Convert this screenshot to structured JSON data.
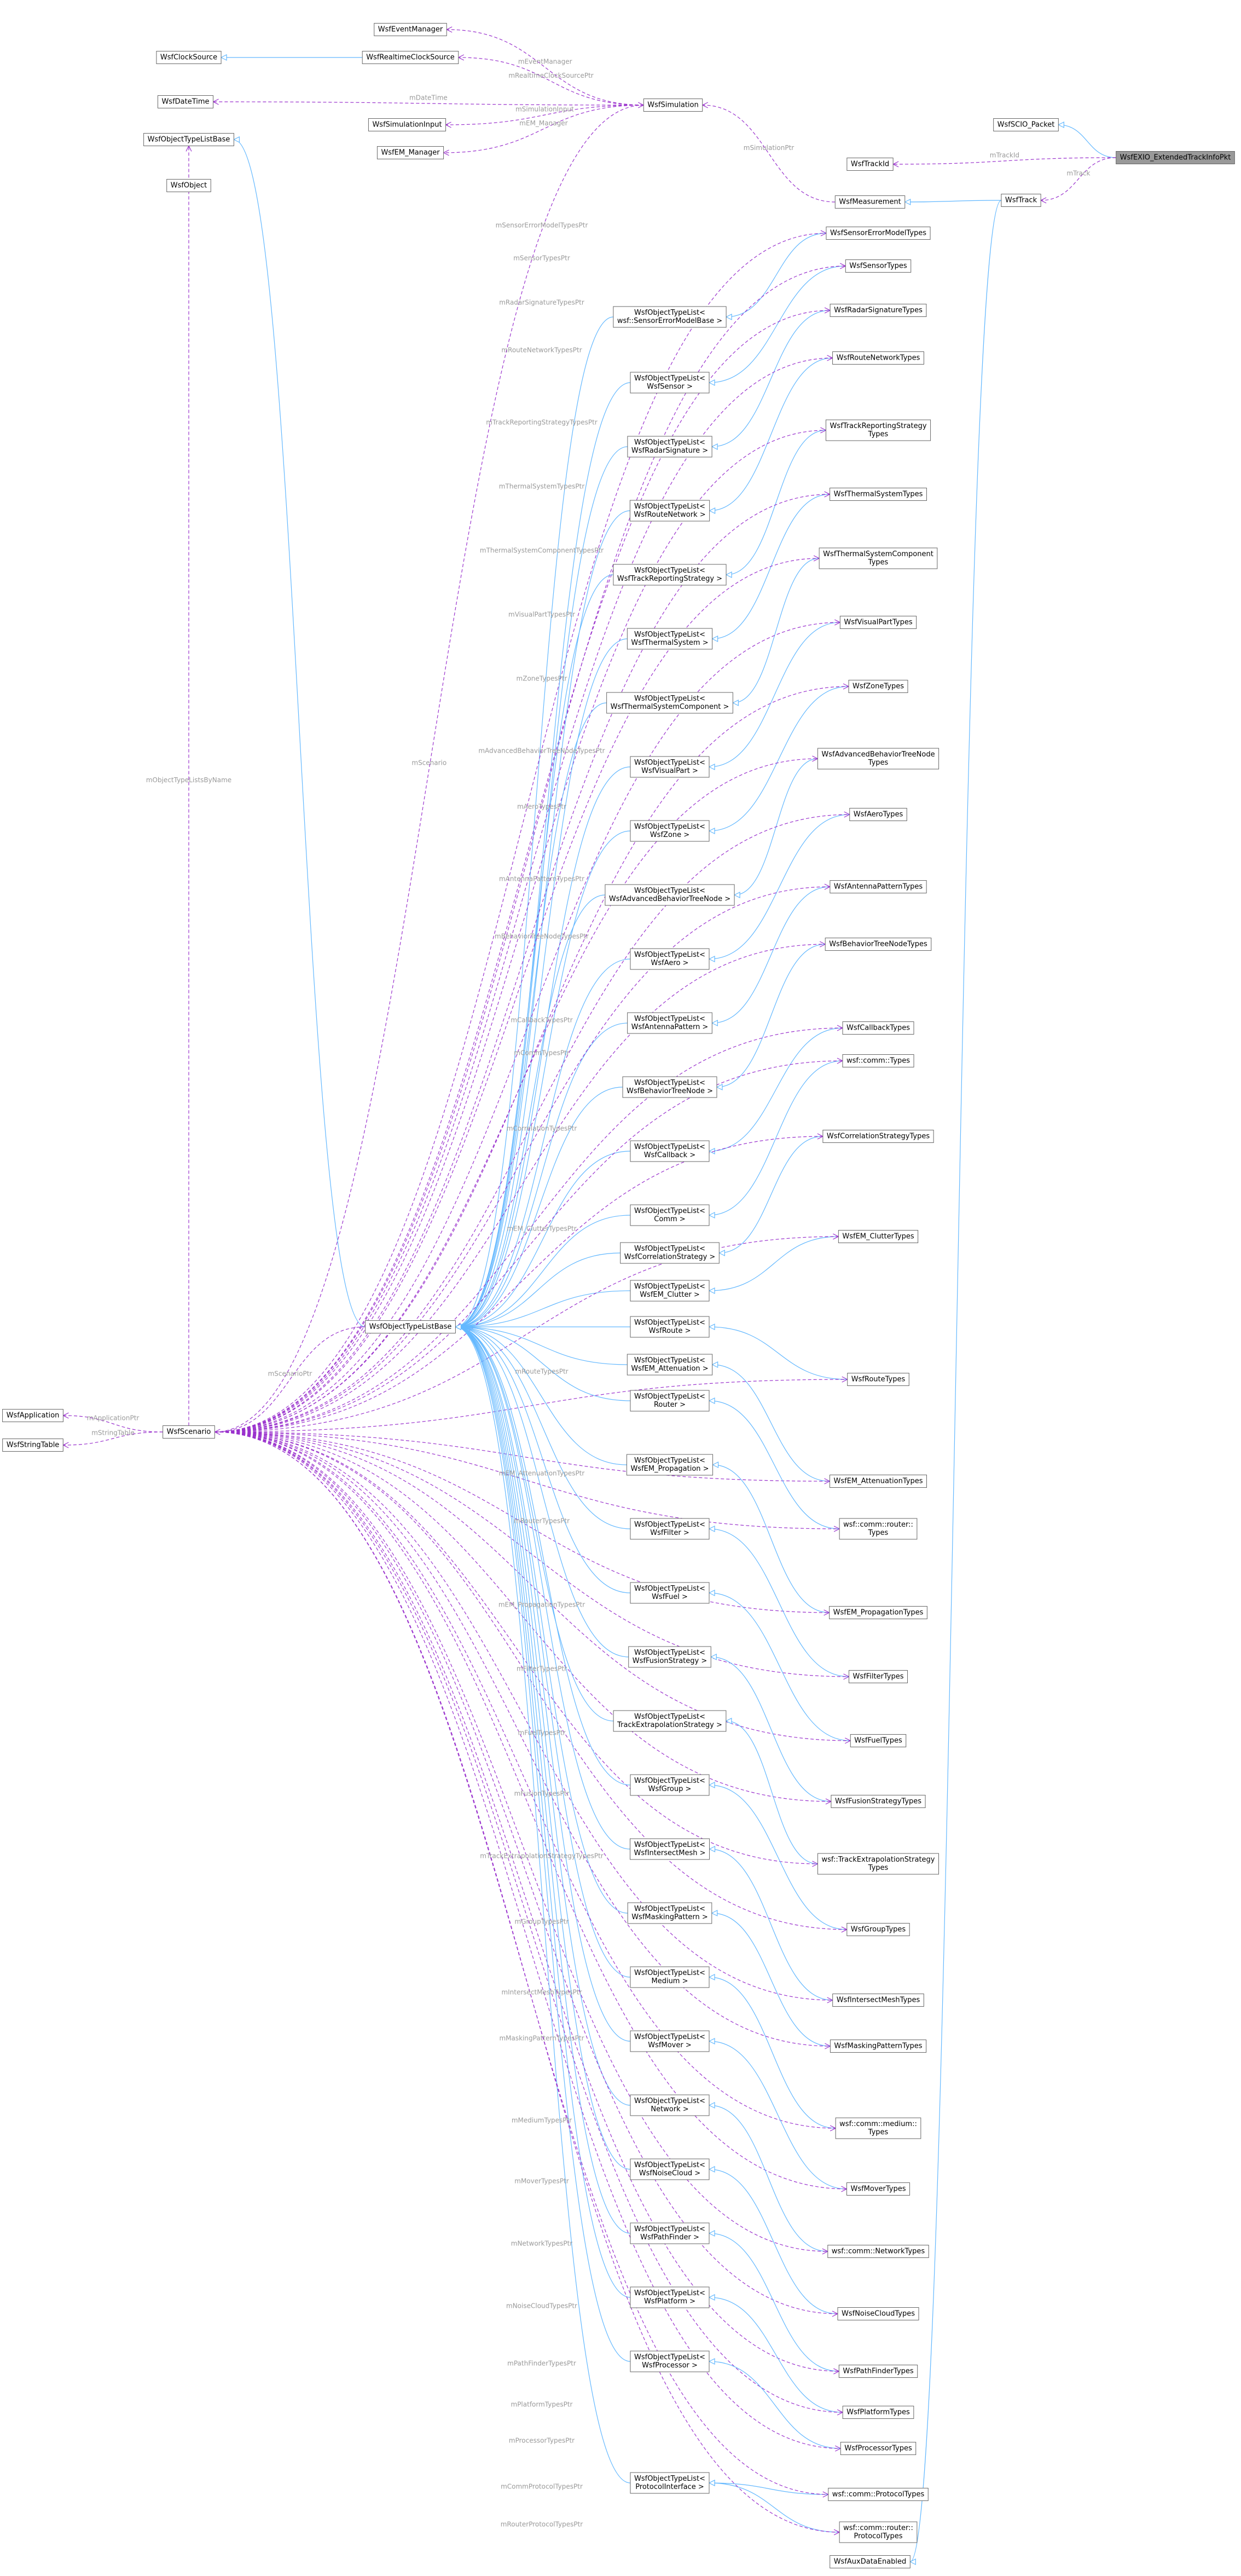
{
  "nodes": [
    {
      "lines": [
        "WsfEventManager"
      ]
    },
    {
      "lines": [
        "WsfRealtimeClockSource"
      ]
    },
    {
      "lines": [
        "WsfClockSource"
      ]
    },
    {
      "lines": [
        "WsfDateTime"
      ]
    },
    {
      "lines": [
        "WsfSimulationInput"
      ]
    },
    {
      "lines": [
        "WsfSimulation"
      ]
    },
    {
      "lines": [
        "WsfEM_Manager"
      ]
    },
    {
      "lines": [
        "WsfObjectTypeListBase"
      ]
    },
    {
      "lines": [
        "WsfObject"
      ]
    },
    {
      "lines": [
        "WsfSCIO_Packet"
      ]
    },
    {
      "lines": [
        "WsfEXIO_ExtendedTrackInfoPkt"
      ]
    },
    {
      "lines": [
        "WsfTrackId"
      ]
    },
    {
      "lines": [
        "WsfMeasurement"
      ]
    },
    {
      "lines": [
        "WsfTrack"
      ]
    },
    {
      "lines": [
        "WsfApplication"
      ]
    },
    {
      "lines": [
        "WsfStringTable"
      ]
    },
    {
      "lines": [
        "WsfScenario"
      ]
    },
    {
      "lines": [
        "WsfObjectTypeListBase"
      ]
    },
    {
      "lines": [
        "WsfAuxDataEnabled"
      ]
    }
  ],
  "edges": [
    {
      "from": 5,
      "to": 0,
      "kind": "usage",
      "label": "mEventManager"
    },
    {
      "from": 5,
      "to": 1,
      "kind": "usage",
      "label": "mRealtimeClockSourcePtr"
    },
    {
      "from": 1,
      "to": 2,
      "kind": "inherit"
    },
    {
      "from": 5,
      "to": 3,
      "kind": "usage",
      "label": "mDateTime"
    },
    {
      "from": 5,
      "to": 4,
      "kind": "usage",
      "label": "mSimulationInput"
    },
    {
      "from": 5,
      "to": 6,
      "kind": "usage",
      "label": "mEM_Manager"
    },
    {
      "from": 16,
      "to": 5,
      "kind": "usage",
      "label": "mScenario"
    },
    {
      "from": 16,
      "to": 7,
      "kind": "usage",
      "label": "mObjectTypeListsByName"
    },
    {
      "from": 16,
      "to": 14,
      "kind": "usage",
      "label": "mApplicationPtr"
    },
    {
      "from": 16,
      "to": 15,
      "kind": "usage",
      "label": "mStringTable"
    },
    {
      "from": 17,
      "to": 7,
      "kind": "inherit"
    },
    {
      "from": 17,
      "to": 16,
      "kind": "usage",
      "label": "mScenarioPtr"
    },
    {
      "from": 10,
      "to": 9,
      "kind": "inherit"
    },
    {
      "from": 10,
      "to": 11,
      "kind": "usage",
      "label": "mTrackId"
    },
    {
      "from": 10,
      "to": 13,
      "kind": "usage",
      "label": "mTrack"
    },
    {
      "from": 13,
      "to": 12,
      "kind": "inherit"
    },
    {
      "from": 12,
      "to": 5,
      "kind": "usage",
      "label": "mSimulationPtr"
    },
    {
      "from": 13,
      "to": 18,
      "kind": "inherit"
    }
  ],
  "type_lists": [
    {
      "list": [
        "WsfObjectTypeList<",
        "wsf::SensorErrorModelBase >"
      ],
      "types": [
        {
          "lines": [
            "WsfSensorErrorModelTypes"
          ],
          "member": "mSensorErrorModelTypesPtr"
        }
      ]
    },
    {
      "list": [
        "WsfObjectTypeList<",
        "WsfSensor >"
      ],
      "types": [
        {
          "lines": [
            "WsfSensorTypes"
          ],
          "member": "mSensorTypesPtr"
        }
      ]
    },
    {
      "list": [
        "WsfObjectTypeList<",
        "WsfRadarSignature >"
      ],
      "types": [
        {
          "lines": [
            "WsfRadarSignatureTypes"
          ],
          "member": "mRadarSignatureTypesPtr"
        }
      ]
    },
    {
      "list": [
        "WsfObjectTypeList<",
        "WsfRouteNetwork >"
      ],
      "types": [
        {
          "lines": [
            "WsfRouteNetworkTypes"
          ],
          "member": "mRouteNetworkTypesPtr"
        }
      ]
    },
    {
      "list": [
        "WsfObjectTypeList<",
        "WsfTrackReportingStrategy >"
      ],
      "types": [
        {
          "lines": [
            "WsfTrackReportingStrategy",
            "Types"
          ],
          "member": "mTrackReportingStrategyTypesPtr"
        }
      ]
    },
    {
      "list": [
        "WsfObjectTypeList<",
        "WsfThermalSystem >"
      ],
      "types": [
        {
          "lines": [
            "WsfThermalSystemTypes"
          ],
          "member": "mThermalSystemTypesPtr"
        }
      ]
    },
    {
      "list": [
        "WsfObjectTypeList<",
        "WsfThermalSystemComponent >"
      ],
      "types": [
        {
          "lines": [
            "WsfThermalSystemComponent",
            "Types"
          ],
          "member": "mThermalSystemComponentTypesPtr"
        }
      ]
    },
    {
      "list": [
        "WsfObjectTypeList<",
        "WsfVisualPart >"
      ],
      "types": [
        {
          "lines": [
            "WsfVisualPartTypes"
          ],
          "member": "mVisualPartTypesPtr"
        }
      ]
    },
    {
      "list": [
        "WsfObjectTypeList<",
        "WsfZone >"
      ],
      "types": [
        {
          "lines": [
            "WsfZoneTypes"
          ],
          "member": "mZoneTypesPtr"
        }
      ]
    },
    {
      "list": [
        "WsfObjectTypeList<",
        "WsfAdvancedBehaviorTreeNode >"
      ],
      "types": [
        {
          "lines": [
            "WsfAdvancedBehaviorTreeNode",
            "Types"
          ],
          "member": "mAdvancedBehaviorTreeNodeTypesPtr"
        }
      ]
    },
    {
      "list": [
        "WsfObjectTypeList<",
        "WsfAero >"
      ],
      "types": [
        {
          "lines": [
            "WsfAeroTypes"
          ],
          "member": "mAeroTypesPtr"
        }
      ]
    },
    {
      "list": [
        "WsfObjectTypeList<",
        "WsfAntennaPattern >"
      ],
      "types": [
        {
          "lines": [
            "WsfAntennaPatternTypes"
          ],
          "member": "mAntennaPatternTypesPtr"
        }
      ]
    },
    {
      "list": [
        "WsfObjectTypeList<",
        "WsfBehaviorTreeNode >"
      ],
      "types": [
        {
          "lines": [
            "WsfBehaviorTreeNodeTypes"
          ],
          "member": "mBehaviorTreeNodeTypesPtr"
        }
      ]
    },
    {
      "list": [
        "WsfObjectTypeList<",
        "WsfCallback >"
      ],
      "types": [
        {
          "lines": [
            "WsfCallbackTypes"
          ],
          "member": "mCallbackTypesPtr"
        }
      ]
    },
    {
      "list": [
        "WsfObjectTypeList<",
        "Comm >"
      ],
      "types": [
        {
          "lines": [
            "wsf::comm::Types"
          ],
          "member": "mCommTypesPtr"
        }
      ]
    },
    {
      "list": [
        "WsfObjectTypeList<",
        "WsfCorrelationStrategy >"
      ],
      "types": [
        {
          "lines": [
            "WsfCorrelationStrategyTypes"
          ],
          "member": "mCorrelationTypesPtr"
        }
      ]
    },
    {
      "list": [
        "WsfObjectTypeList<",
        "WsfEM_Clutter >"
      ],
      "types": [
        {
          "lines": [
            "WsfEM_ClutterTypes"
          ],
          "member": "mEM_ClutterTypesPtr"
        }
      ]
    },
    {
      "list": [
        "WsfObjectTypeList<",
        "WsfRoute >"
      ],
      "types": [
        {
          "lines": [
            "WsfRouteTypes"
          ],
          "member": "mRouteTypesPtr"
        }
      ]
    },
    {
      "list": [
        "WsfObjectTypeList<",
        "WsfEM_Attenuation >"
      ],
      "types": [
        {
          "lines": [
            "WsfEM_AttenuationTypes"
          ],
          "member": "mEM_AttenuationTypesPtr"
        }
      ]
    },
    {
      "list": [
        "WsfObjectTypeList<",
        "Router >"
      ],
      "types": [
        {
          "lines": [
            "wsf::comm::router::",
            "Types"
          ],
          "member": "mRouterTypesPtr"
        }
      ]
    },
    {
      "list": [
        "WsfObjectTypeList<",
        "WsfEM_Propagation >"
      ],
      "types": [
        {
          "lines": [
            "WsfEM_PropagationTypes"
          ],
          "member": "mEM_PropagationTypesPtr"
        }
      ]
    },
    {
      "list": [
        "WsfObjectTypeList<",
        "WsfFilter >"
      ],
      "types": [
        {
          "lines": [
            "WsfFilterTypes"
          ],
          "member": "mFilterTypesPtr"
        }
      ]
    },
    {
      "list": [
        "WsfObjectTypeList<",
        "WsfFuel >"
      ],
      "types": [
        {
          "lines": [
            "WsfFuelTypes"
          ],
          "member": "mFuelTypesPtr"
        }
      ]
    },
    {
      "list": [
        "WsfObjectTypeList<",
        "WsfFusionStrategy >"
      ],
      "types": [
        {
          "lines": [
            "WsfFusionStrategyTypes"
          ],
          "member": "mFusionTypesPtr"
        }
      ]
    },
    {
      "list": [
        "WsfObjectTypeList<",
        "TrackExtrapolationStrategy >"
      ],
      "types": [
        {
          "lines": [
            "wsf::TrackExtrapolationStrategy",
            "Types"
          ],
          "member": "mTrackExtrapolationStrategyTypesPtr"
        }
      ]
    },
    {
      "list": [
        "WsfObjectTypeList<",
        "WsfGroup >"
      ],
      "types": [
        {
          "lines": [
            "WsfGroupTypes"
          ],
          "member": "mGroupTypesPtr"
        }
      ]
    },
    {
      "list": [
        "WsfObjectTypeList<",
        "WsfIntersectMesh >"
      ],
      "types": [
        {
          "lines": [
            "WsfIntersectMeshTypes"
          ],
          "member": "mIntersectMeshTypesPtr"
        }
      ]
    },
    {
      "list": [
        "WsfObjectTypeList<",
        "WsfMaskingPattern >"
      ],
      "types": [
        {
          "lines": [
            "WsfMaskingPatternTypes"
          ],
          "member": "mMaskingPatternTypesPtr"
        }
      ]
    },
    {
      "list": [
        "WsfObjectTypeList<",
        "Medium >"
      ],
      "types": [
        {
          "lines": [
            "wsf::comm::medium::",
            "Types"
          ],
          "member": "mMediumTypesPtr"
        }
      ]
    },
    {
      "list": [
        "WsfObjectTypeList<",
        "WsfMover >"
      ],
      "types": [
        {
          "lines": [
            "WsfMoverTypes"
          ],
          "member": "mMoverTypesPtr"
        }
      ]
    },
    {
      "list": [
        "WsfObjectTypeList<",
        "Network >"
      ],
      "types": [
        {
          "lines": [
            "wsf::comm::NetworkTypes"
          ],
          "member": "mNetworkTypesPtr"
        }
      ]
    },
    {
      "list": [
        "WsfObjectTypeList<",
        "WsfNoiseCloud >"
      ],
      "types": [
        {
          "lines": [
            "WsfNoiseCloudTypes"
          ],
          "member": "mNoiseCloudTypesPtr"
        }
      ]
    },
    {
      "list": [
        "WsfObjectTypeList<",
        "WsfPathFinder >"
      ],
      "types": [
        {
          "lines": [
            "WsfPathFinderTypes"
          ],
          "member": "mPathFinderTypesPtr"
        }
      ]
    },
    {
      "list": [
        "WsfObjectTypeList<",
        "WsfPlatform >"
      ],
      "types": [
        {
          "lines": [
            "WsfPlatformTypes"
          ],
          "member": "mPlatformTypesPtr"
        }
      ]
    },
    {
      "list": [
        "WsfObjectTypeList<",
        "WsfProcessor >"
      ],
      "types": [
        {
          "lines": [
            "WsfProcessorTypes"
          ],
          "member": "mProcessorTypesPtr"
        }
      ]
    },
    {
      "list": [
        "WsfObjectTypeList<",
        "ProtocolInterface >"
      ],
      "types": [
        {
          "lines": [
            "wsf::comm::ProtocolTypes"
          ],
          "member": "mCommProtocolTypesPtr"
        },
        {
          "lines": [
            "wsf::comm::router::",
            "ProtocolTypes"
          ],
          "member": "mRouterProtocolTypesPtr"
        }
      ]
    }
  ]
}
